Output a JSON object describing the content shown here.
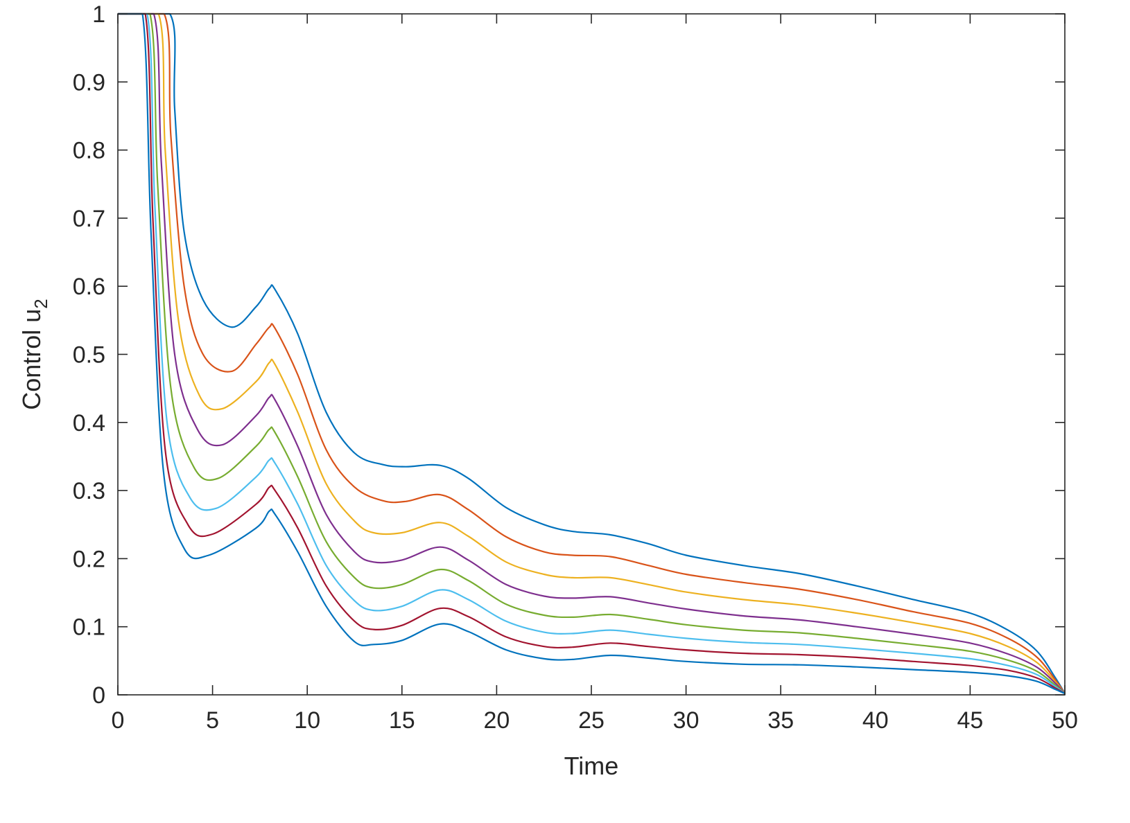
{
  "chart_data": {
    "type": "line",
    "title": "",
    "xlabel": "Time",
    "ylabel": "Control u",
    "ylabel_subscript": "2",
    "xlim": [
      0,
      50
    ],
    "ylim": [
      0,
      1
    ],
    "xticks": [
      0,
      5,
      10,
      15,
      20,
      25,
      30,
      35,
      40,
      45,
      50
    ],
    "yticks": [
      0,
      0.1,
      0.2,
      0.3,
      0.4,
      0.5,
      0.6,
      0.7,
      0.8,
      0.9,
      1
    ],
    "xtick_labels": [
      "0",
      "5",
      "10",
      "15",
      "20",
      "25",
      "30",
      "35",
      "40",
      "45",
      "50"
    ],
    "ytick_labels": [
      "0",
      "0.1",
      "0.2",
      "0.3",
      "0.4",
      "0.5",
      "0.6",
      "0.7",
      "0.8",
      "0.9",
      "1"
    ],
    "grid": false,
    "legend": "none",
    "series": [
      {
        "color": "#0072BD",
        "x": [
          0,
          2.75,
          3.0,
          3.5,
          4.5,
          6.0,
          7.3,
          8.0,
          8.3,
          9.5,
          11.0,
          12.5,
          14.0,
          15.2,
          17.0,
          18.5,
          20.5,
          22.5,
          24.0,
          26.0,
          28.0,
          30.0,
          33.0,
          36.0,
          39.0,
          42.0,
          45.0,
          47.0,
          48.5,
          49.5,
          50
        ],
        "y": [
          1,
          1,
          0.86,
          0.68,
          0.58,
          0.54,
          0.57,
          0.597,
          0.595,
          0.53,
          0.415,
          0.355,
          0.338,
          0.335,
          0.337,
          0.318,
          0.275,
          0.25,
          0.24,
          0.235,
          0.222,
          0.205,
          0.19,
          0.178,
          0.16,
          0.14,
          0.12,
          0.095,
          0.065,
          0.025,
          0.002
        ]
      },
      {
        "color": "#D95319",
        "x": [
          0,
          2.45,
          2.8,
          3.5,
          4.5,
          6.0,
          7.3,
          8.0,
          8.3,
          9.5,
          11.0,
          12.5,
          14.0,
          15.2,
          17.0,
          18.5,
          20.5,
          22.5,
          24.0,
          26.0,
          28.0,
          30.0,
          33.0,
          36.0,
          39.0,
          42.0,
          45.0,
          47.0,
          48.5,
          49.5,
          50
        ],
        "y": [
          1,
          1,
          0.82,
          0.6,
          0.5,
          0.475,
          0.515,
          0.54,
          0.538,
          0.47,
          0.36,
          0.305,
          0.285,
          0.284,
          0.294,
          0.272,
          0.232,
          0.21,
          0.205,
          0.203,
          0.19,
          0.177,
          0.165,
          0.155,
          0.14,
          0.122,
          0.105,
          0.083,
          0.056,
          0.022,
          0.002
        ]
      },
      {
        "color": "#EDB120",
        "x": [
          0,
          2.15,
          2.5,
          3.2,
          4.3,
          5.5,
          7.3,
          8.0,
          8.3,
          9.5,
          11.0,
          12.5,
          13.5,
          15.0,
          17.0,
          18.5,
          20.5,
          22.5,
          24.0,
          26.0,
          28.0,
          30.0,
          33.0,
          36.0,
          39.0,
          42.0,
          45.0,
          47.0,
          48.5,
          49.5,
          50
        ],
        "y": [
          1,
          1,
          0.8,
          0.55,
          0.44,
          0.42,
          0.46,
          0.488,
          0.485,
          0.415,
          0.31,
          0.255,
          0.238,
          0.238,
          0.253,
          0.233,
          0.195,
          0.177,
          0.172,
          0.172,
          0.162,
          0.151,
          0.14,
          0.132,
          0.12,
          0.106,
          0.09,
          0.071,
          0.048,
          0.019,
          0.002
        ]
      },
      {
        "color": "#7E2F8E",
        "x": [
          0,
          1.9,
          2.3,
          3.0,
          4.2,
          5.5,
          7.3,
          8.0,
          8.3,
          9.5,
          11.0,
          12.5,
          13.5,
          15.0,
          17.0,
          18.5,
          20.5,
          22.5,
          24.0,
          26.0,
          28.0,
          30.0,
          33.0,
          36.0,
          39.0,
          42.0,
          45.0,
          47.0,
          48.5,
          49.5,
          50
        ],
        "y": [
          1,
          1,
          0.78,
          0.5,
          0.39,
          0.367,
          0.41,
          0.437,
          0.433,
          0.365,
          0.265,
          0.21,
          0.195,
          0.198,
          0.217,
          0.198,
          0.162,
          0.145,
          0.142,
          0.144,
          0.135,
          0.126,
          0.116,
          0.11,
          0.1,
          0.089,
          0.076,
          0.06,
          0.041,
          0.017,
          0.002
        ]
      },
      {
        "color": "#77AC30",
        "x": [
          0,
          1.7,
          2.1,
          2.8,
          4.0,
          5.3,
          7.3,
          8.0,
          8.3,
          9.5,
          11.0,
          12.5,
          13.5,
          15.0,
          17.0,
          18.5,
          20.5,
          22.5,
          24.0,
          26.0,
          28.0,
          30.0,
          33.0,
          36.0,
          39.0,
          42.0,
          45.0,
          47.0,
          48.5,
          49.5,
          50
        ],
        "y": [
          1,
          1,
          0.75,
          0.45,
          0.335,
          0.318,
          0.365,
          0.39,
          0.385,
          0.32,
          0.225,
          0.172,
          0.157,
          0.162,
          0.184,
          0.168,
          0.133,
          0.117,
          0.114,
          0.118,
          0.111,
          0.103,
          0.095,
          0.091,
          0.083,
          0.074,
          0.064,
          0.051,
          0.035,
          0.014,
          0.002
        ]
      },
      {
        "color": "#4DBEEE",
        "x": [
          0,
          1.55,
          1.95,
          2.6,
          3.8,
          5.2,
          7.3,
          8.0,
          8.3,
          9.5,
          11.0,
          12.5,
          13.5,
          15.0,
          17.0,
          18.5,
          20.5,
          22.5,
          24.0,
          26.0,
          28.0,
          30.0,
          33.0,
          36.0,
          39.0,
          42.0,
          45.0,
          47.0,
          48.5,
          49.5,
          50
        ],
        "y": [
          1,
          1,
          0.72,
          0.4,
          0.29,
          0.274,
          0.32,
          0.345,
          0.34,
          0.28,
          0.19,
          0.138,
          0.124,
          0.13,
          0.154,
          0.14,
          0.108,
          0.092,
          0.09,
          0.095,
          0.089,
          0.083,
          0.077,
          0.074,
          0.068,
          0.061,
          0.053,
          0.043,
          0.03,
          0.012,
          0.002
        ]
      },
      {
        "color": "#A2142F",
        "x": [
          0,
          1.45,
          1.85,
          2.5,
          3.7,
          5.0,
          7.3,
          8.0,
          8.3,
          9.5,
          11.0,
          12.5,
          13.5,
          15.0,
          17.0,
          18.5,
          20.5,
          22.5,
          24.0,
          26.0,
          28.0,
          30.0,
          33.0,
          36.0,
          39.0,
          42.0,
          45.0,
          47.0,
          48.5,
          49.5,
          50
        ],
        "y": [
          1,
          1,
          0.7,
          0.36,
          0.25,
          0.236,
          0.28,
          0.305,
          0.3,
          0.245,
          0.16,
          0.108,
          0.096,
          0.102,
          0.127,
          0.115,
          0.085,
          0.071,
          0.07,
          0.076,
          0.071,
          0.066,
          0.061,
          0.059,
          0.055,
          0.049,
          0.043,
          0.036,
          0.025,
          0.01,
          0.002
        ]
      },
      {
        "color": "#0072BD",
        "x": [
          0,
          1.3,
          1.75,
          2.4,
          3.5,
          4.8,
          7.3,
          8.0,
          8.3,
          9.5,
          11.0,
          12.5,
          13.5,
          15.0,
          17.0,
          18.5,
          20.5,
          22.5,
          24.0,
          26.0,
          28.0,
          30.0,
          33.0,
          36.0,
          39.0,
          42.0,
          45.0,
          47.0,
          48.5,
          49.5,
          50
        ],
        "y": [
          1,
          1,
          0.68,
          0.33,
          0.215,
          0.205,
          0.245,
          0.27,
          0.265,
          0.21,
          0.13,
          0.078,
          0.074,
          0.08,
          0.104,
          0.093,
          0.066,
          0.053,
          0.052,
          0.058,
          0.054,
          0.049,
          0.045,
          0.044,
          0.041,
          0.037,
          0.033,
          0.028,
          0.02,
          0.008,
          0.002
        ]
      }
    ]
  }
}
